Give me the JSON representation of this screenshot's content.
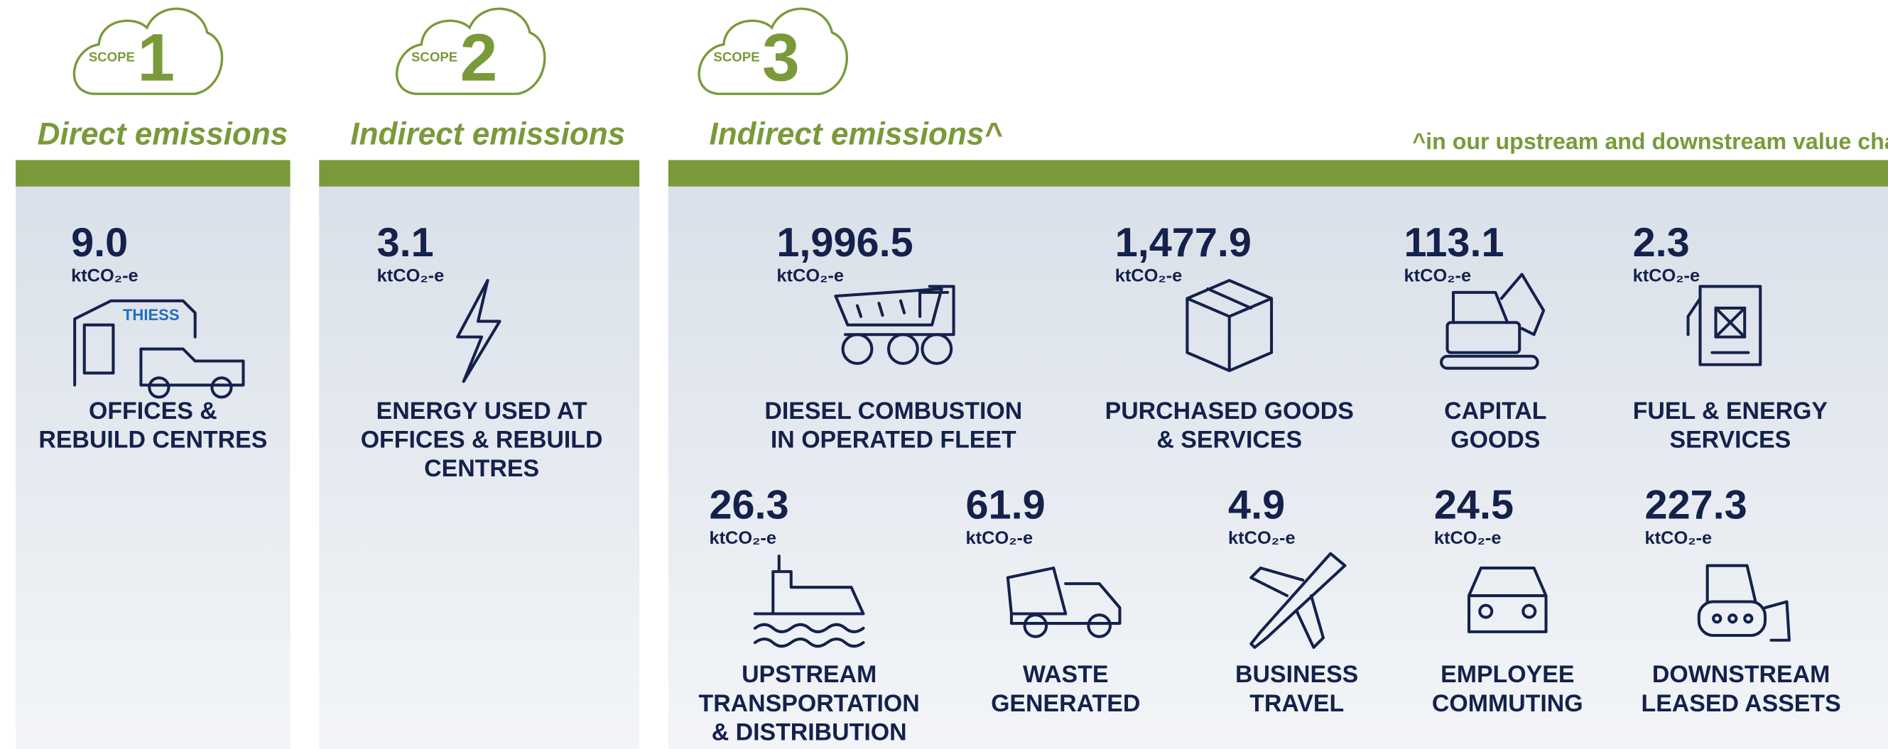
{
  "scopes": [
    {
      "badge": "SCOPE",
      "number": "1",
      "heading": "Direct emissions",
      "logo": "THIESS",
      "items": [
        {
          "value": "9.0",
          "unit": "ktCO₂-e",
          "label": [
            "OFFICES &",
            "REBUILD CENTRES"
          ]
        }
      ]
    },
    {
      "badge": "SCOPE",
      "number": "2",
      "heading": "Indirect emissions",
      "items": [
        {
          "value": "3.1",
          "unit": "ktCO₂-e",
          "label": [
            "ENERGY USED AT",
            "OFFICES & REBUILD",
            "CENTRES"
          ]
        }
      ]
    },
    {
      "badge": "SCOPE",
      "number": "3",
      "heading": "Indirect emissions^",
      "note": "^in our upstream and downstream value chain",
      "items": [
        {
          "value": "1,996.5",
          "unit": "ktCO₂-e",
          "label": [
            "DIESEL COMBUSTION",
            "IN OPERATED FLEET"
          ]
        },
        {
          "value": "1,477.9",
          "unit": "ktCO₂-e",
          "label": [
            "PURCHASED GOODS",
            "& SERVICES"
          ]
        },
        {
          "value": "113.1",
          "unit": "ktCO₂-e",
          "label": [
            "CAPITAL",
            "GOODS"
          ]
        },
        {
          "value": "2.3",
          "unit": "ktCO₂-e",
          "label": [
            "FUEL & ENERGY",
            "SERVICES"
          ]
        },
        {
          "value": "26.3",
          "unit": "ktCO₂-e",
          "label": [
            "UPSTREAM",
            "TRANSPORTATION",
            "& DISTRIBUTION"
          ]
        },
        {
          "value": "61.9",
          "unit": "ktCO₂-e",
          "label": [
            "WASTE",
            "GENERATED"
          ]
        },
        {
          "value": "4.9",
          "unit": "ktCO₂-e",
          "label": [
            "BUSINESS",
            "TRAVEL"
          ]
        },
        {
          "value": "24.5",
          "unit": "ktCO₂-e",
          "label": [
            "EMPLOYEE",
            "COMMUTING"
          ]
        },
        {
          "value": "227.3",
          "unit": "ktCO₂-e",
          "label": [
            "DOWNSTREAM",
            "LEASED ASSETS"
          ]
        }
      ]
    }
  ]
}
